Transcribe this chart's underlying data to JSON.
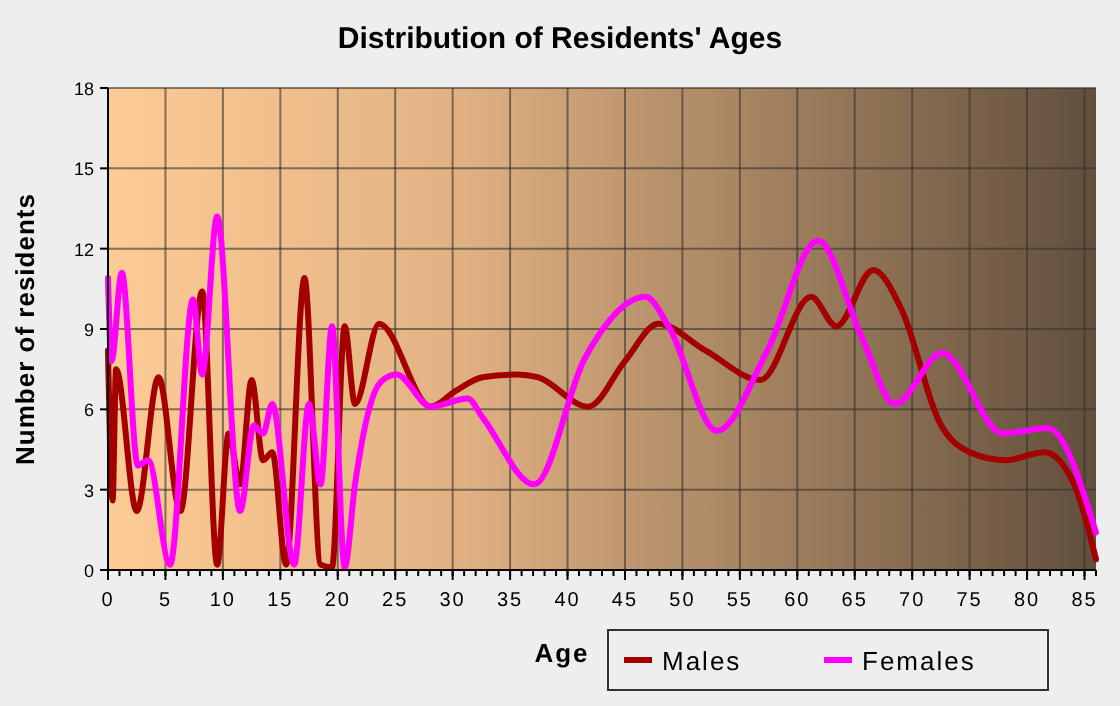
{
  "chart_data": {
    "type": "line",
    "title": "Distribution of Residents' Ages",
    "xlabel": "Age",
    "ylabel": "Number of residents",
    "xlim": [
      0,
      86
    ],
    "xticks": [
      0,
      5,
      10,
      15,
      20,
      25,
      30,
      35,
      40,
      45,
      50,
      55,
      60,
      65,
      70,
      75,
      80,
      85
    ],
    "ylim": [
      0,
      18
    ],
    "yticks": [
      0,
      3,
      6,
      9,
      12,
      15,
      18
    ],
    "grid": true,
    "legend": "bottom right",
    "marker": "none",
    "line_style": "solid",
    "series": [
      {
        "name": "Males",
        "color": "#a50000",
        "x": [
          0,
          0.4,
          0.7,
          2.5,
          4.4,
          6.3,
          8.2,
          9.5,
          10.5,
          11.5,
          12.5,
          13.5,
          14.3,
          15.5,
          17.1,
          18.5,
          19.5,
          20.6,
          21.5,
          23.6,
          28.1,
          30.3,
          32.6,
          35.6,
          37.4,
          41.8,
          45,
          47.9,
          52,
          56.8,
          61.2,
          63.4,
          66.6,
          69.1,
          72.4,
          75,
          78.2,
          81.5,
          84.1,
          86
        ],
        "values": [
          8.2,
          2.6,
          7.5,
          2.2,
          7.2,
          2.2,
          10.4,
          0.2,
          5.1,
          3.2,
          7.1,
          4.1,
          4.4,
          0.2,
          10.9,
          0.2,
          0.1,
          9.1,
          6.2,
          9.2,
          6.1,
          6.7,
          7.2,
          7.3,
          7.2,
          6.1,
          7.8,
          9.2,
          8.2,
          7.1,
          10.2,
          9.1,
          11.2,
          9.7,
          5.5,
          4.4,
          4.1,
          4.4,
          3.2,
          0.4
        ]
      },
      {
        "name": "Females",
        "color": "#ff00ff",
        "x": [
          0,
          0.3,
          1.2,
          2.6,
          3.5,
          5.4,
          7.4,
          8.2,
          9.5,
          11.5,
          12.7,
          13.5,
          14.3,
          16.2,
          17.5,
          18.5,
          19.5,
          20.6,
          21.5,
          23.7,
          25.1,
          28.1,
          31.3,
          32.6,
          37.1,
          41.5,
          46.8,
          48.8,
          53,
          57.4,
          61.8,
          65.6,
          68.5,
          72.6,
          77.9,
          81.8,
          86
        ],
        "values": [
          10.9,
          7.8,
          11.1,
          3.9,
          4.1,
          0.2,
          10.1,
          7.3,
          13.2,
          2.2,
          5.4,
          5.1,
          6.2,
          0.2,
          6.2,
          3.2,
          9.1,
          0.1,
          3.2,
          7,
          7.3,
          6.1,
          6.4,
          5.7,
          3.2,
          7.9,
          10.2,
          9.1,
          5.2,
          8.2,
          12.3,
          8.7,
          6.2,
          8.1,
          5.1,
          5.3,
          1.4
        ]
      }
    ]
  }
}
